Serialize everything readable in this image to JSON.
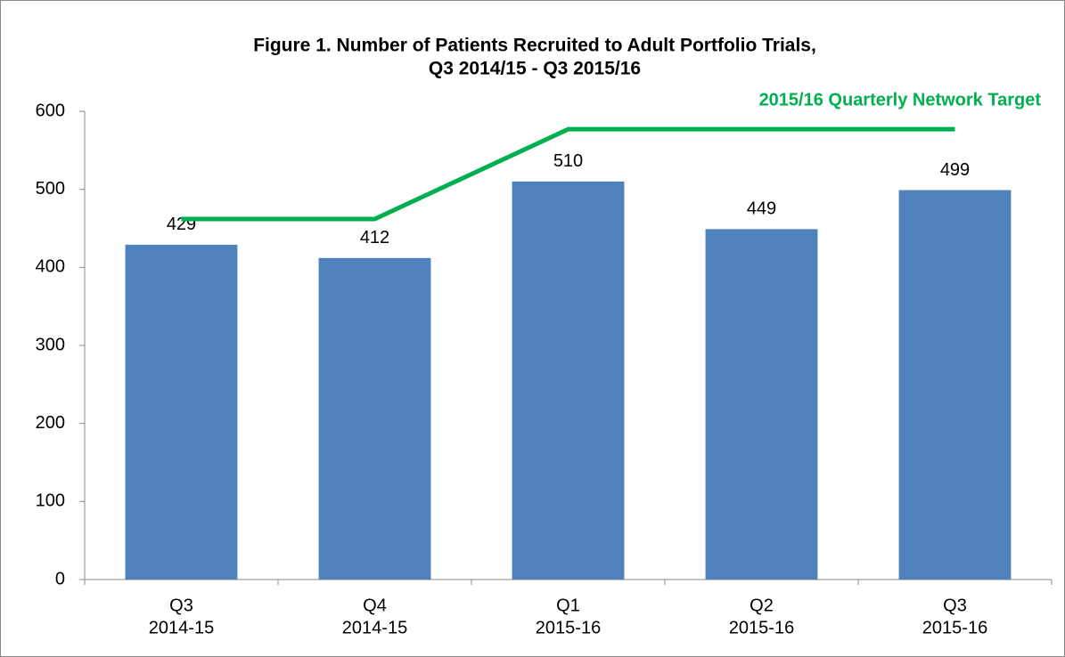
{
  "chart_data": {
    "type": "bar",
    "title": [
      "Figure 1. Number of Patients Recruited to Adult Portfolio Trials,",
      "Q3 2014/15 - Q3 2015/16"
    ],
    "categories": [
      [
        "Q3",
        "2014-15"
      ],
      [
        "Q4",
        "2014-15"
      ],
      [
        "Q1",
        "2015-16"
      ],
      [
        "Q2",
        "2015-16"
      ],
      [
        "Q3",
        "2015-16"
      ]
    ],
    "values": [
      429,
      412,
      510,
      449,
      499
    ],
    "color": "#4f81bd",
    "target": {
      "name": "2015/16 Quarterly Network Target",
      "color": "#00b050",
      "values": [
        462,
        462,
        577,
        577,
        577
      ]
    },
    "ylim": [
      0,
      600
    ],
    "yticks": [
      0,
      100,
      200,
      300,
      400,
      500,
      600
    ],
    "grid": false
  }
}
